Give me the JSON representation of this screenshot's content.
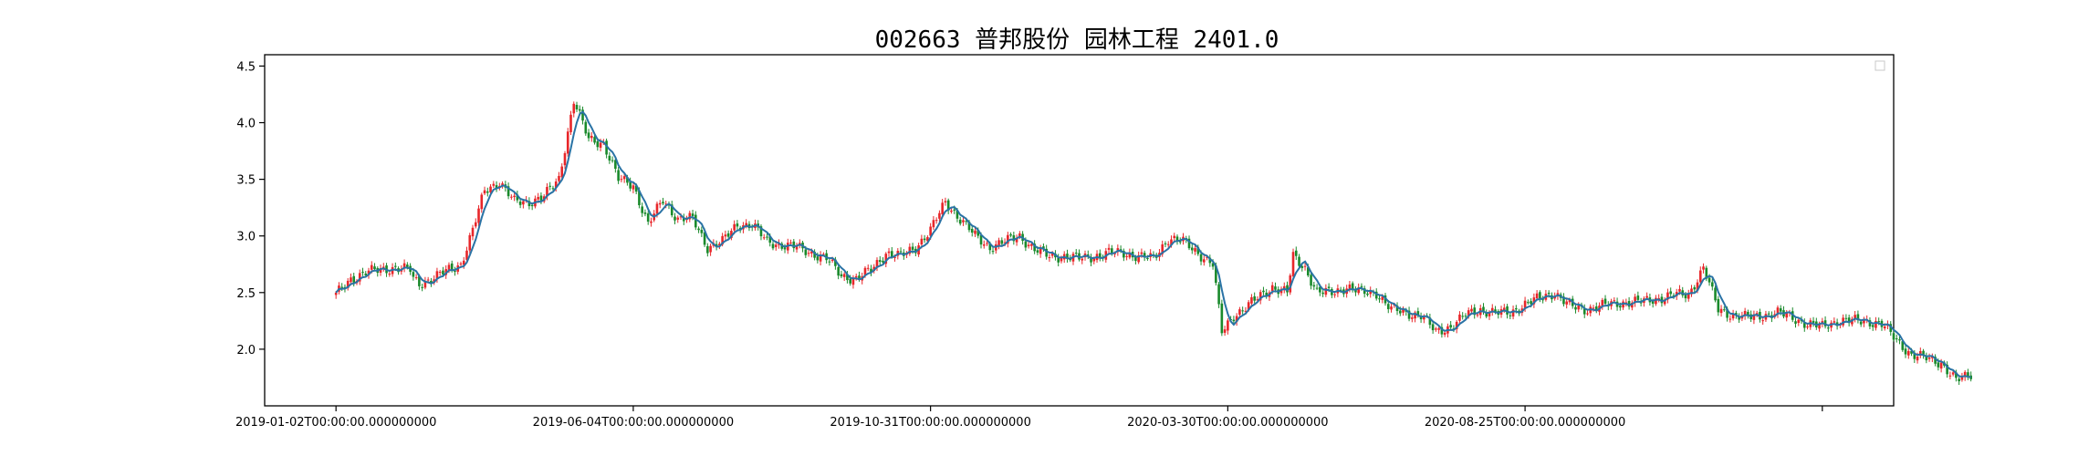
{
  "chart_data": {
    "type": "candlestick",
    "title": "002663 普邦股份 园林工程 2401.0",
    "xlabel": "",
    "ylabel": "",
    "ylim": [
      1.5,
      4.6
    ],
    "y_ticks": [
      "2.0",
      "2.5",
      "3.0",
      "3.5",
      "4.0",
      "4.5"
    ],
    "x_ticks": [
      {
        "label": "2019-01-02T00:00:00.000000000",
        "index": 0
      },
      {
        "label": "2019-06-04T00:00:00.000000000",
        "index": 100
      },
      {
        "label": "2019-10-31T00:00:00.000000000",
        "index": 200
      },
      {
        "label": "2020-03-30T00:00:00.000000000",
        "index": 300
      },
      {
        "label": "2020-08-25T00:00:00.000000000",
        "index": 400
      },
      {
        "label": "",
        "index": 500
      }
    ],
    "x_range": [
      -24,
      524
    ],
    "legend": {
      "position": "top-right",
      "entries": []
    },
    "grid": false,
    "colors": {
      "up": "#e8262a",
      "down": "#1a8a2c",
      "ma": "#2a73a5",
      "axis": "#000000"
    },
    "close_anchors": [
      [
        0,
        2.48
      ],
      [
        5,
        2.62
      ],
      [
        10,
        2.68
      ],
      [
        20,
        2.72
      ],
      [
        25,
        2.7
      ],
      [
        20,
        2.72
      ],
      [
        22,
        2.7
      ],
      [
        28,
        2.58
      ],
      [
        32,
        2.62
      ],
      [
        38,
        2.7
      ],
      [
        42,
        2.75
      ],
      [
        46,
        3.05
      ],
      [
        50,
        3.4
      ],
      [
        55,
        3.48
      ],
      [
        60,
        3.3
      ],
      [
        65,
        3.3
      ],
      [
        70,
        3.35
      ],
      [
        75,
        3.5
      ],
      [
        80,
        4.2
      ],
      [
        85,
        3.85
      ],
      [
        90,
        3.82
      ],
      [
        95,
        3.5
      ],
      [
        100,
        3.45
      ],
      [
        105,
        3.1
      ],
      [
        110,
        3.32
      ],
      [
        115,
        3.15
      ],
      [
        120,
        3.15
      ],
      [
        125,
        2.9
      ],
      [
        130,
        2.95
      ],
      [
        135,
        3.1
      ],
      [
        140,
        3.1
      ],
      [
        145,
        2.95
      ],
      [
        150,
        2.92
      ],
      [
        155,
        2.9
      ],
      [
        160,
        2.85
      ],
      [
        165,
        2.8
      ],
      [
        170,
        2.65
      ],
      [
        175,
        2.62
      ],
      [
        180,
        2.7
      ],
      [
        185,
        2.85
      ],
      [
        190,
        2.82
      ],
      [
        195,
        2.9
      ],
      [
        200,
        3.05
      ],
      [
        205,
        3.3
      ],
      [
        210,
        3.15
      ],
      [
        215,
        3.0
      ],
      [
        220,
        2.9
      ],
      [
        225,
        2.95
      ],
      [
        230,
        3.0
      ],
      [
        235,
        2.88
      ],
      [
        240,
        2.82
      ],
      [
        245,
        2.82
      ],
      [
        250,
        2.8
      ],
      [
        255,
        2.82
      ],
      [
        260,
        2.85
      ],
      [
        265,
        2.85
      ],
      [
        270,
        2.82
      ],
      [
        275,
        2.8
      ],
      [
        280,
        2.98
      ],
      [
        285,
        2.95
      ],
      [
        290,
        2.85
      ],
      [
        295,
        2.75
      ],
      [
        298,
        2.15
      ],
      [
        302,
        2.3
      ],
      [
        305,
        2.35
      ],
      [
        310,
        2.45
      ],
      [
        315,
        2.55
      ],
      [
        320,
        2.5
      ],
      [
        322,
        2.82
      ],
      [
        326,
        2.72
      ],
      [
        330,
        2.5
      ],
      [
        335,
        2.5
      ],
      [
        340,
        2.55
      ],
      [
        345,
        2.5
      ],
      [
        350,
        2.5
      ],
      [
        355,
        2.35
      ],
      [
        360,
        2.32
      ],
      [
        365,
        2.3
      ],
      [
        370,
        2.15
      ],
      [
        375,
        2.2
      ],
      [
        380,
        2.3
      ],
      [
        385,
        2.35
      ],
      [
        390,
        2.32
      ],
      [
        395,
        2.32
      ],
      [
        400,
        2.4
      ],
      [
        405,
        2.45
      ],
      [
        410,
        2.5
      ],
      [
        415,
        2.38
      ],
      [
        420,
        2.35
      ],
      [
        425,
        2.38
      ],
      [
        430,
        2.4
      ],
      [
        435,
        2.42
      ],
      [
        440,
        2.42
      ],
      [
        445,
        2.45
      ],
      [
        450,
        2.48
      ],
      [
        455,
        2.48
      ],
      [
        460,
        2.72
      ],
      [
        465,
        2.35
      ],
      [
        470,
        2.3
      ],
      [
        475,
        2.28
      ],
      [
        480,
        2.3
      ],
      [
        485,
        2.32
      ],
      [
        490,
        2.28
      ],
      [
        495,
        2.22
      ],
      [
        500,
        2.2
      ],
      [
        505,
        2.25
      ],
      [
        510,
        2.25
      ],
      [
        515,
        2.25
      ],
      [
        520,
        2.22
      ],
      [
        525,
        2.08
      ],
      [
        530,
        1.95
      ],
      [
        535,
        1.92
      ],
      [
        540,
        1.88
      ],
      [
        545,
        1.72
      ],
      [
        550,
        1.78
      ]
    ]
  }
}
